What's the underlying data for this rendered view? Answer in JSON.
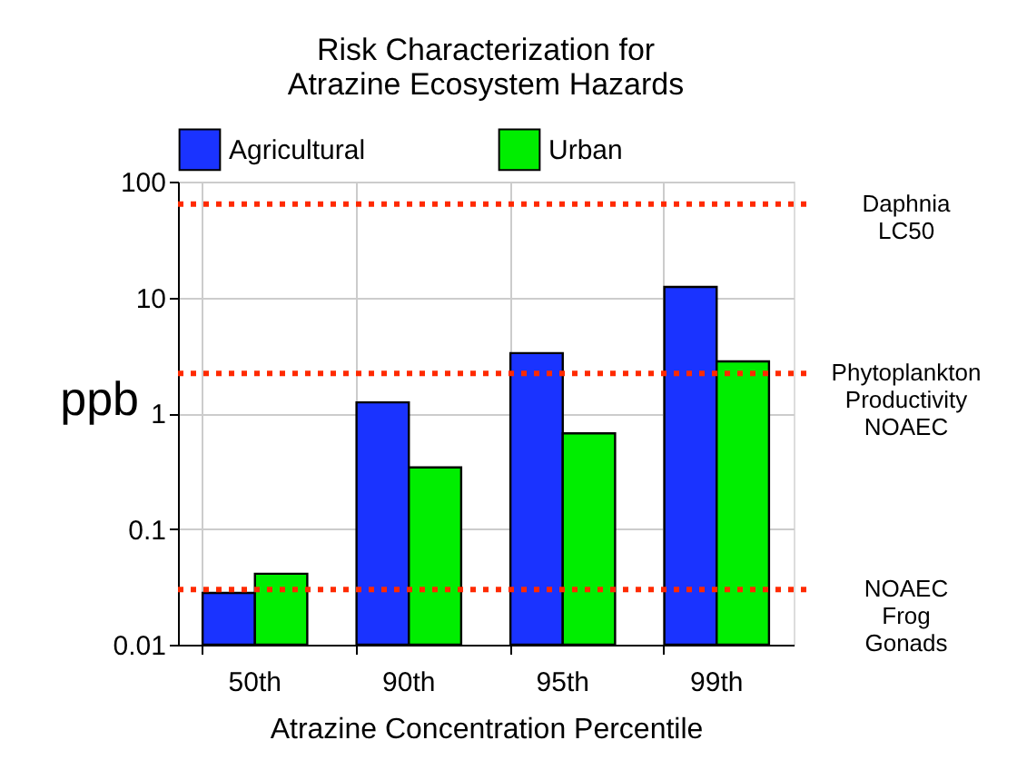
{
  "chart_data": {
    "type": "bar",
    "title": [
      "Risk Characterization for",
      "Atrazine Ecosystem Hazards"
    ],
    "xlabel": "Atrazine Concentration Percentile",
    "ylabel": "ppb",
    "categories": [
      "50th",
      "90th",
      "95th",
      "99th"
    ],
    "series": [
      {
        "name": "Agricultural",
        "color": "#1a33ff",
        "values": [
          0.028,
          1.24,
          3.3,
          12.3
        ]
      },
      {
        "name": "Urban",
        "color": "#00ee00",
        "values": [
          0.041,
          0.34,
          0.67,
          2.8
        ]
      }
    ],
    "log": true,
    "ylim": [
      0.01,
      100
    ],
    "yticks": [
      0.01,
      0.1,
      1,
      10,
      100
    ],
    "grid": true,
    "legend": "top",
    "ref_lines": [
      {
        "axis": "y",
        "value": 64,
        "label": "Daphnia\nLC50",
        "color": "#ff2a00",
        "line_style": "dotted"
      },
      {
        "axis": "y",
        "value": 2.2,
        "label": "Phytoplankton\nProductivity\nNOAEC",
        "color": "#ff2a00",
        "line_style": "dotted"
      },
      {
        "axis": "y",
        "value": 0.03,
        "label": "NOAEC\nFrog\nGonads",
        "color": "#ff2a00",
        "line_style": "dotted"
      }
    ]
  }
}
